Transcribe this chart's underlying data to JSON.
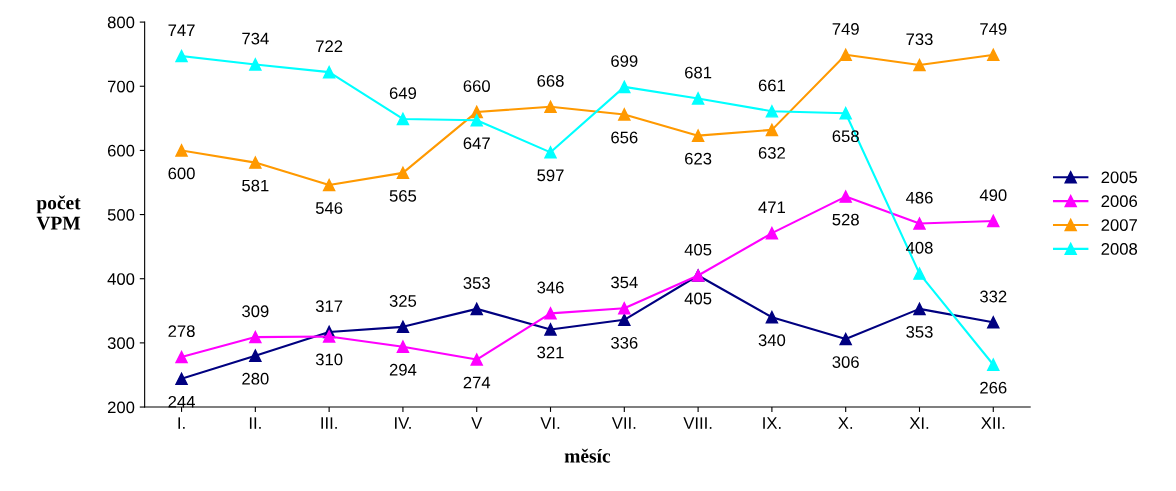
{
  "chart_data": {
    "type": "line",
    "xlabel": "měsíc",
    "ylabel": "počet\nVPM",
    "categories": [
      "I.",
      "II.",
      "III.",
      "IV.",
      "V",
      "VI.",
      "VII.",
      "VIII.",
      "IX.",
      "X.",
      "XI.",
      "XII."
    ],
    "series": [
      {
        "name": "2005",
        "color": "#000080",
        "values": [
          244,
          280,
          317,
          325,
          353,
          321,
          336,
          405,
          340,
          306,
          353,
          332
        ]
      },
      {
        "name": "2006",
        "color": "#ff00ff",
        "values": [
          278,
          309,
          310,
          294,
          274,
          346,
          354,
          405,
          471,
          528,
          486,
          490
        ]
      },
      {
        "name": "2007",
        "color": "#ff9900",
        "values": [
          600,
          581,
          546,
          565,
          660,
          668,
          656,
          623,
          632,
          749,
          733,
          749
        ]
      },
      {
        "name": "2008",
        "color": "#00ffff",
        "values": [
          747,
          734,
          722,
          649,
          647,
          597,
          699,
          681,
          661,
          658,
          408,
          266
        ]
      }
    ],
    "ylim": [
      200,
      800
    ],
    "yticks": [
      200,
      300,
      400,
      500,
      600,
      700,
      800
    ],
    "data_labels": true,
    "legend": "right",
    "grid": false,
    "marker": "triangle",
    "line_style": "solid"
  }
}
